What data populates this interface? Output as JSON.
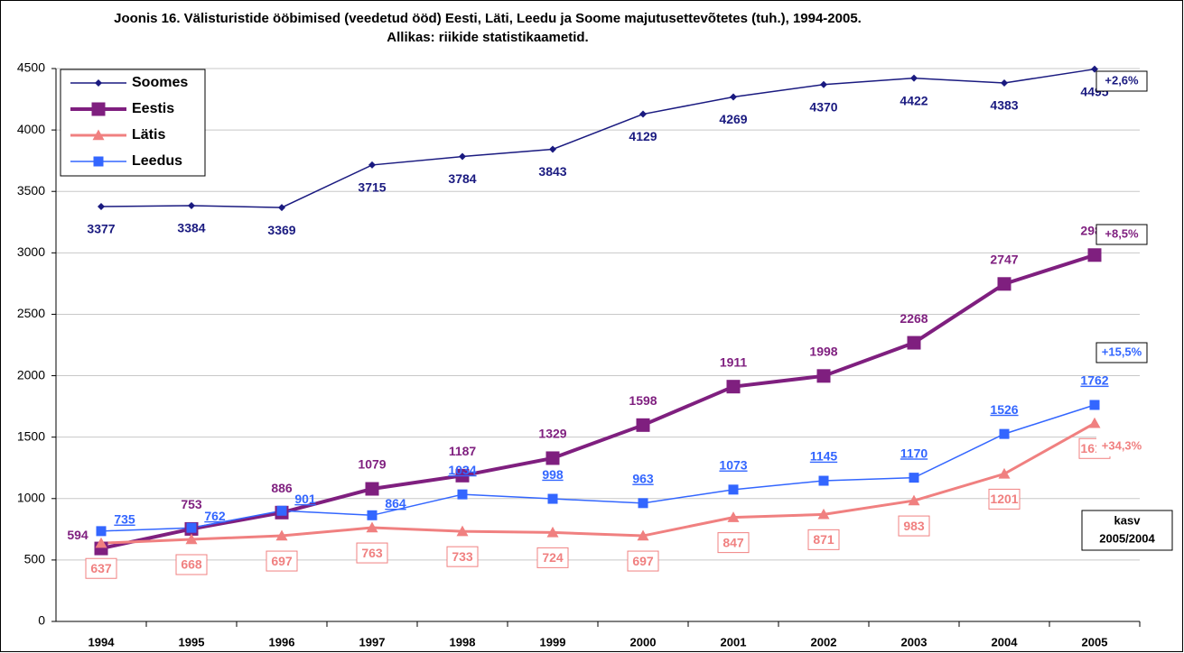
{
  "chart_data": {
    "type": "line",
    "title": "Joonis 16. Välisturistide ööbimised (veedetud ööd) Eesti, Läti, Leedu ja Soome majutusettevõtetes (tuh.), 1994-2005. Allikas: riikide statistikaametid.",
    "categories": [
      "1994",
      "1995",
      "1996",
      "1997",
      "1998",
      "1999",
      "2000",
      "2001",
      "2002",
      "2003",
      "2004",
      "2005"
    ],
    "series": [
      {
        "name": "Soomes",
        "color": "#1a1a80",
        "values": [
          3377,
          3384,
          3369,
          3715,
          3784,
          3843,
          4129,
          4269,
          4370,
          4422,
          4383,
          4495
        ]
      },
      {
        "name": "Eestis",
        "color": "#7f1f7f",
        "values": [
          594,
          753,
          886,
          1079,
          1187,
          1329,
          1598,
          1911,
          1998,
          2268,
          2747,
          2982
        ]
      },
      {
        "name": "Lätis",
        "color": "#f08080",
        "values": [
          637,
          668,
          697,
          763,
          733,
          724,
          697,
          847,
          871,
          983,
          1201,
          1613
        ]
      },
      {
        "name": "Leedus",
        "color": "#3366ff",
        "values": [
          735,
          762,
          901,
          864,
          1034,
          998,
          963,
          1073,
          1145,
          1170,
          1526,
          1762
        ]
      }
    ],
    "ylim": [
      0,
      4500
    ],
    "yticks": [
      0,
      500,
      1000,
      1500,
      2000,
      2500,
      3000,
      3500,
      4000,
      4500
    ],
    "grid": true,
    "legend": "upper-left",
    "annotations": [
      "+2,6%",
      "+8,5%",
      "+15,5%",
      "+34,3%"
    ],
    "note": [
      "kasv",
      "2005/2004"
    ]
  }
}
